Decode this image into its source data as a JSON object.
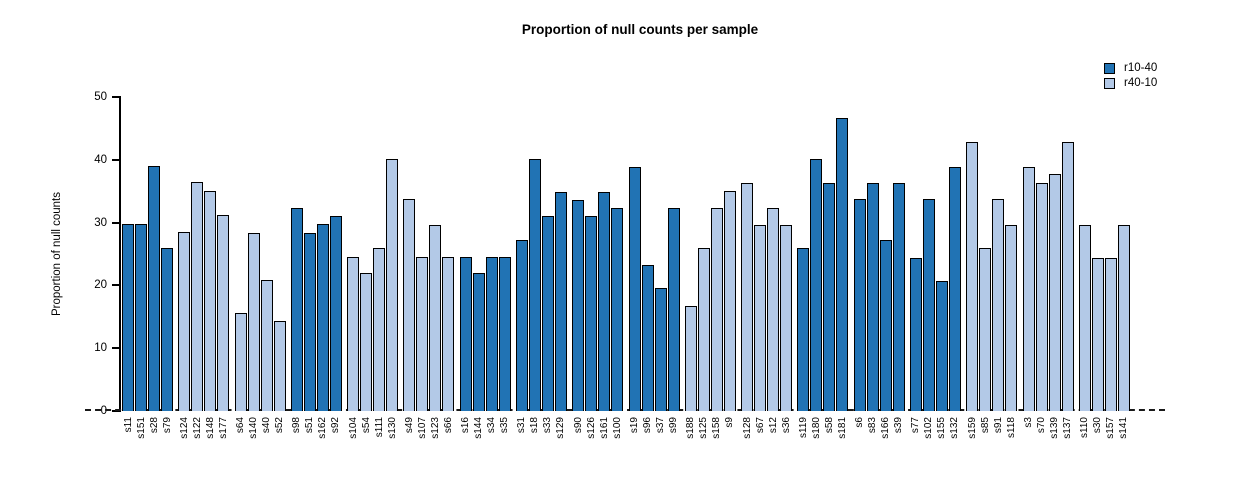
{
  "chart_data": {
    "type": "bar",
    "title": "Proportion of null counts per sample",
    "xlabel": "",
    "ylabel": "Proportion of null counts",
    "ylim": [
      0,
      50
    ],
    "yticks": [
      0,
      10,
      20,
      30,
      40,
      50
    ],
    "grid": false,
    "legend_position": "top-right",
    "group_size": 4,
    "series_colors": {
      "r10-40": "#2173b4",
      "r40-10": "#b3c9e7"
    },
    "legend": [
      {
        "label": "r10-40",
        "color": "#2173b4"
      },
      {
        "label": "r40-10",
        "color": "#b3c9e7"
      }
    ],
    "bars": [
      {
        "label": "s11",
        "value": 29.8,
        "series": "r10-40"
      },
      {
        "label": "s151",
        "value": 29.8,
        "series": "r10-40"
      },
      {
        "label": "s28",
        "value": 39.0,
        "series": "r10-40"
      },
      {
        "label": "s79",
        "value": 25.9,
        "series": "r10-40"
      },
      {
        "label": "s124",
        "value": 28.5,
        "series": "r40-10"
      },
      {
        "label": "s122",
        "value": 36.4,
        "series": "r40-10"
      },
      {
        "label": "s148",
        "value": 35.0,
        "series": "r40-10"
      },
      {
        "label": "s177",
        "value": 31.2,
        "series": "r40-10"
      },
      {
        "label": "s64",
        "value": 15.6,
        "series": "r40-10"
      },
      {
        "label": "s140",
        "value": 28.4,
        "series": "r40-10"
      },
      {
        "label": "s40",
        "value": 20.8,
        "series": "r40-10"
      },
      {
        "label": "s52",
        "value": 14.3,
        "series": "r40-10"
      },
      {
        "label": "s98",
        "value": 32.4,
        "series": "r10-40"
      },
      {
        "label": "s51",
        "value": 28.4,
        "series": "r10-40"
      },
      {
        "label": "s162",
        "value": 29.8,
        "series": "r10-40"
      },
      {
        "label": "s92",
        "value": 31.1,
        "series": "r10-40"
      },
      {
        "label": "s104",
        "value": 24.5,
        "series": "r40-10"
      },
      {
        "label": "s54",
        "value": 22.0,
        "series": "r40-10"
      },
      {
        "label": "s111",
        "value": 25.9,
        "series": "r40-10"
      },
      {
        "label": "s130",
        "value": 40.2,
        "series": "r40-10"
      },
      {
        "label": "s49",
        "value": 33.7,
        "series": "r40-10"
      },
      {
        "label": "s107",
        "value": 24.5,
        "series": "r40-10"
      },
      {
        "label": "s123",
        "value": 29.7,
        "series": "r40-10"
      },
      {
        "label": "s66",
        "value": 24.5,
        "series": "r40-10"
      },
      {
        "label": "s16",
        "value": 24.5,
        "series": "r10-40"
      },
      {
        "label": "s144",
        "value": 22.0,
        "series": "r10-40"
      },
      {
        "label": "s34",
        "value": 24.5,
        "series": "r10-40"
      },
      {
        "label": "s35",
        "value": 24.5,
        "series": "r10-40"
      },
      {
        "label": "s31",
        "value": 27.2,
        "series": "r10-40"
      },
      {
        "label": "s18",
        "value": 40.1,
        "series": "r10-40"
      },
      {
        "label": "s33",
        "value": 31.1,
        "series": "r10-40"
      },
      {
        "label": "s129",
        "value": 34.9,
        "series": "r10-40"
      },
      {
        "label": "s90",
        "value": 33.6,
        "series": "r10-40"
      },
      {
        "label": "s126",
        "value": 31.1,
        "series": "r10-40"
      },
      {
        "label": "s161",
        "value": 34.9,
        "series": "r10-40"
      },
      {
        "label": "s100",
        "value": 32.4,
        "series": "r10-40"
      },
      {
        "label": "s19",
        "value": 38.9,
        "series": "r10-40"
      },
      {
        "label": "s96",
        "value": 23.3,
        "series": "r10-40"
      },
      {
        "label": "s37",
        "value": 19.6,
        "series": "r10-40"
      },
      {
        "label": "s99",
        "value": 32.4,
        "series": "r10-40"
      },
      {
        "label": "s188",
        "value": 16.8,
        "series": "r40-10"
      },
      {
        "label": "s125",
        "value": 25.9,
        "series": "r40-10"
      },
      {
        "label": "s158",
        "value": 32.4,
        "series": "r40-10"
      },
      {
        "label": "s9",
        "value": 35.0,
        "series": "r40-10"
      },
      {
        "label": "s128",
        "value": 36.3,
        "series": "r40-10"
      },
      {
        "label": "s67",
        "value": 29.7,
        "series": "r40-10"
      },
      {
        "label": "s12",
        "value": 32.4,
        "series": "r40-10"
      },
      {
        "label": "s36",
        "value": 29.7,
        "series": "r40-10"
      },
      {
        "label": "s119",
        "value": 25.9,
        "series": "r10-40"
      },
      {
        "label": "s180",
        "value": 40.1,
        "series": "r10-40"
      },
      {
        "label": "s58",
        "value": 36.3,
        "series": "r10-40"
      },
      {
        "label": "s181",
        "value": 46.7,
        "series": "r10-40"
      },
      {
        "label": "s6",
        "value": 33.7,
        "series": "r10-40"
      },
      {
        "label": "s83",
        "value": 36.3,
        "series": "r10-40"
      },
      {
        "label": "s166",
        "value": 27.2,
        "series": "r10-40"
      },
      {
        "label": "s39",
        "value": 36.3,
        "series": "r10-40"
      },
      {
        "label": "s77",
        "value": 24.4,
        "series": "r10-40"
      },
      {
        "label": "s102",
        "value": 33.7,
        "series": "r10-40"
      },
      {
        "label": "s155",
        "value": 20.7,
        "series": "r10-40"
      },
      {
        "label": "s132",
        "value": 38.9,
        "series": "r10-40"
      },
      {
        "label": "s159",
        "value": 42.8,
        "series": "r40-10"
      },
      {
        "label": "s85",
        "value": 25.9,
        "series": "r40-10"
      },
      {
        "label": "s91",
        "value": 33.7,
        "series": "r40-10"
      },
      {
        "label": "s118",
        "value": 29.7,
        "series": "r40-10"
      },
      {
        "label": "s3",
        "value": 38.9,
        "series": "r40-10"
      },
      {
        "label": "s70",
        "value": 36.3,
        "series": "r40-10"
      },
      {
        "label": "s139",
        "value": 37.7,
        "series": "r40-10"
      },
      {
        "label": "s137",
        "value": 42.8,
        "series": "r40-10"
      },
      {
        "label": "s110",
        "value": 29.7,
        "series": "r40-10"
      },
      {
        "label": "s30",
        "value": 24.4,
        "series": "r40-10"
      },
      {
        "label": "s157",
        "value": 24.4,
        "series": "r40-10"
      },
      {
        "label": "s141",
        "value": 29.7,
        "series": "r40-10"
      }
    ]
  }
}
